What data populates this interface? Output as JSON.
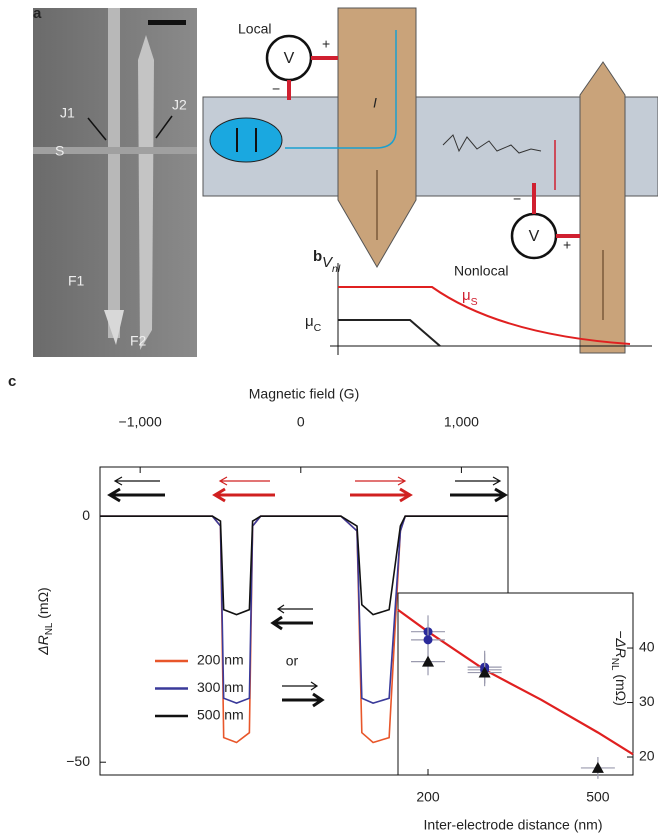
{
  "panel_labels": [
    "a",
    "b",
    "c"
  ],
  "panel_a": {
    "sem_labels": [
      "J1",
      "J2",
      "S",
      "F1",
      "F2"
    ],
    "local": "Local",
    "nonlocal": "Nonlocal",
    "voltmeter": "V",
    "plus": "+",
    "minus": "−",
    "current": "I"
  },
  "panel_b": {
    "ylabel": {
      "main": "V",
      "sub": "nl"
    },
    "mu_s": {
      "main": "μ",
      "sub": "S"
    },
    "mu_c": {
      "main": "μ",
      "sub": "C"
    }
  },
  "chart_data": [
    {
      "type": "line",
      "x_label": "Magnetic field (G)",
      "y_label": {
        "main": "ΔR",
        "sub": "NL",
        "unit": " (mΩ)"
      },
      "x": [
        -1250,
        -1000,
        -750,
        -550,
        -500,
        -480,
        -400,
        -320,
        -300,
        -250,
        0,
        250,
        350,
        380,
        450,
        550,
        620,
        650,
        800,
        1000,
        1290
      ],
      "series": [
        {
          "name": "200 nm",
          "color": "#e8562a",
          "values": [
            0,
            0,
            0,
            0,
            -2,
            -45,
            -46,
            -44,
            -2,
            0,
            0,
            0,
            -3,
            -44,
            -46,
            -45,
            -3,
            0,
            0,
            0,
            0
          ]
        },
        {
          "name": "300 nm",
          "color": "#3a3a9a",
          "values": [
            0,
            0,
            0,
            0,
            -2,
            -37,
            -38,
            -37,
            -2,
            0,
            0,
            0,
            -3,
            -37,
            -38,
            -37,
            -3,
            0,
            0,
            0,
            0
          ]
        },
        {
          "name": "500 nm",
          "color": "#111111",
          "values": [
            0,
            0,
            0,
            0,
            -1,
            -19,
            -20,
            -19,
            -1,
            0,
            0,
            0,
            -2,
            -18,
            -20,
            -19,
            -2,
            0,
            0,
            0,
            0
          ]
        }
      ],
      "xlim": [
        -1250,
        1290
      ],
      "xticks": [
        {
          "value": -1000,
          "label": "−1,000"
        },
        0,
        {
          "value": 1000,
          "label": "1,000"
        }
      ],
      "ylim": [
        -52.6,
        10
      ],
      "yticks": [
        0,
        {
          "value": -50,
          "label": "−50"
        }
      ],
      "legend_position": "lower left",
      "annotation": "or"
    },
    {
      "type": "scatter",
      "x_label": "Inter-electrode distance (nm)",
      "y_label": {
        "main": "−ΔR",
        "sub": "NL",
        "unit": " (mΩ)"
      },
      "series": [
        {
          "kind": "line",
          "color": "#e02020",
          "x": [
            147,
            200,
            300,
            400,
            500,
            562
          ],
          "values": [
            47,
            43,
            36,
            30.5,
            24.5,
            20.5
          ]
        },
        {
          "kind": "points",
          "color": "#2a2a9a",
          "x": [
            200,
            200,
            300,
            300
          ],
          "values": [
            43,
            41.5,
            36.5,
            36
          ],
          "errors": [
            3,
            3,
            3,
            3
          ],
          "xerr": [
            30,
            30,
            30,
            30
          ]
        },
        {
          "kind": "points",
          "color": "#111111",
          "x": [
            200,
            300,
            500
          ],
          "values": [
            37.5,
            35.5,
            18
          ],
          "errors": [
            2.5,
            2,
            2
          ],
          "xerr": [
            30,
            30,
            30
          ]
        }
      ],
      "xlim": [
        147,
        562
      ],
      "xticks": [
        200,
        500
      ],
      "ylim": [
        16.7,
        50.1
      ],
      "yticks": [
        20,
        30,
        40
      ]
    }
  ]
}
